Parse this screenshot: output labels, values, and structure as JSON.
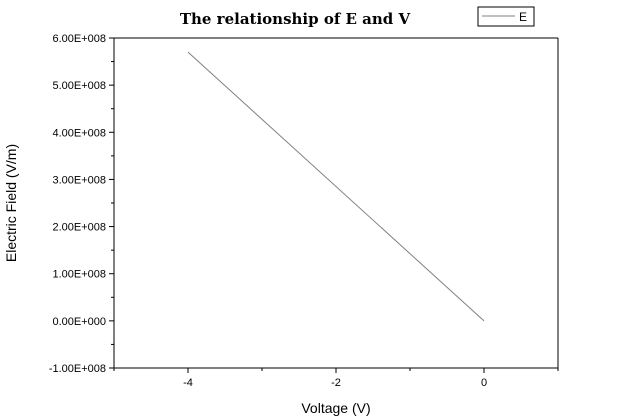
{
  "chart_data": {
    "type": "line",
    "title": "The relationship of E and V",
    "xlabel": "Voltage (V)",
    "ylabel": "Electric Field (V/m)",
    "xlim": [
      -5,
      1
    ],
    "ylim": [
      -100000000,
      600000000
    ],
    "x_ticks": [
      -4,
      -2,
      0
    ],
    "x_tick_labels": [
      "-4",
      "-2",
      "0"
    ],
    "y_ticks": [
      -100000000,
      0,
      100000000,
      200000000,
      300000000,
      400000000,
      500000000,
      600000000
    ],
    "y_tick_labels": [
      "-1.00E+008",
      "0.00E+000",
      "1.00E+008",
      "2.00E+008",
      "3.00E+008",
      "4.00E+008",
      "5.00E+008",
      "6.00E+008"
    ],
    "grid": false,
    "legend_position": "top-right",
    "series": [
      {
        "name": "E",
        "color": "#808080",
        "x": [
          -4,
          0
        ],
        "y": [
          570000000,
          0
        ]
      }
    ]
  }
}
